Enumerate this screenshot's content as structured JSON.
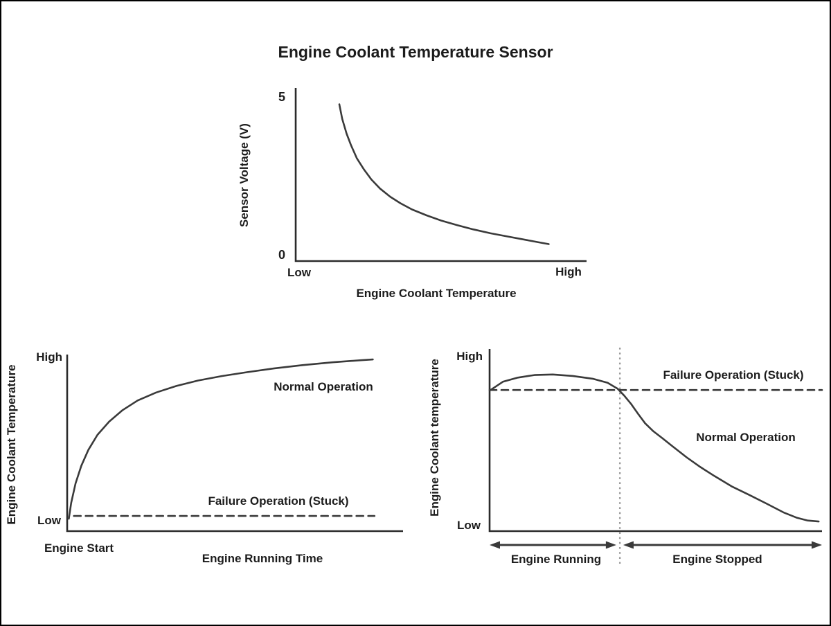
{
  "title": "Engine Coolant Temperature Sensor",
  "colors": {
    "line": "#3a3a3a",
    "axis": "#2b2b2b",
    "vline": "#9b9b9b",
    "text": "#1c1c1c"
  },
  "chart_data": [
    {
      "type": "line",
      "title": "Sensor voltage vs engine coolant temperature",
      "xlabel": "Engine Coolant Temperature",
      "ylabel": "Sensor Voltage (V)",
      "xticks": [
        "Low",
        "High"
      ],
      "yticks": [
        "5",
        "0"
      ],
      "ylim": [
        0,
        5.3
      ],
      "series": [
        {
          "name": "Sensor voltage",
          "style": "solid",
          "points": [
            [
              0.15,
              4.8
            ],
            [
              0.16,
              4.35
            ],
            [
              0.175,
              3.9
            ],
            [
              0.19,
              3.55
            ],
            [
              0.21,
              3.15
            ],
            [
              0.235,
              2.8
            ],
            [
              0.26,
              2.5
            ],
            [
              0.29,
              2.22
            ],
            [
              0.325,
              1.97
            ],
            [
              0.36,
              1.77
            ],
            [
              0.4,
              1.58
            ],
            [
              0.45,
              1.4
            ],
            [
              0.5,
              1.24
            ],
            [
              0.555,
              1.1
            ],
            [
              0.61,
              0.97
            ],
            [
              0.67,
              0.85
            ],
            [
              0.73,
              0.75
            ],
            [
              0.79,
              0.65
            ],
            [
              0.845,
              0.56
            ],
            [
              0.87,
              0.52
            ]
          ]
        }
      ]
    },
    {
      "type": "line",
      "title": "Warm-up behavior",
      "xlabel": "Engine Running Time",
      "ylabel": "Engine Coolant Temperature",
      "origin_label": "Engine Start",
      "yticks": [
        "High",
        "Low"
      ],
      "ylim": [
        0,
        1
      ],
      "series": [
        {
          "name": "Normal Operation",
          "style": "solid",
          "points": [
            [
              0.005,
              0.07
            ],
            [
              0.012,
              0.16
            ],
            [
              0.025,
              0.27
            ],
            [
              0.042,
              0.37
            ],
            [
              0.063,
              0.46
            ],
            [
              0.09,
              0.545
            ],
            [
              0.125,
              0.62
            ],
            [
              0.165,
              0.685
            ],
            [
              0.21,
              0.74
            ],
            [
              0.265,
              0.785
            ],
            [
              0.325,
              0.822
            ],
            [
              0.39,
              0.853
            ],
            [
              0.46,
              0.878
            ],
            [
              0.535,
              0.9
            ],
            [
              0.615,
              0.921
            ],
            [
              0.7,
              0.94
            ],
            [
              0.79,
              0.956
            ],
            [
              0.875,
              0.968
            ],
            [
              0.91,
              0.972
            ]
          ]
        },
        {
          "name": "Failure Operation (Stuck)",
          "style": "dashed",
          "points": [
            [
              0.02,
              0.086
            ],
            [
              0.915,
              0.086
            ]
          ]
        }
      ]
    },
    {
      "type": "line",
      "title": "Cool-down behavior",
      "xlabel": "",
      "ylabel": "Engine Coolant temperature",
      "yticks": [
        "High",
        "Low"
      ],
      "ylim": [
        0,
        1
      ],
      "vline": {
        "x": 0.392,
        "style": "dotted"
      },
      "series": [
        {
          "name": "Failure Operation (Stuck)",
          "style": "dashed",
          "points": [
            [
              0.0,
              0.775
            ],
            [
              1.0,
              0.775
            ]
          ]
        },
        {
          "name": "Normal Operation",
          "style": "solid",
          "points": [
            [
              0.002,
              0.774
            ],
            [
              0.04,
              0.82
            ],
            [
              0.085,
              0.843
            ],
            [
              0.135,
              0.857
            ],
            [
              0.19,
              0.86
            ],
            [
              0.25,
              0.852
            ],
            [
              0.31,
              0.837
            ],
            [
              0.355,
              0.815
            ],
            [
              0.385,
              0.782
            ],
            [
              0.405,
              0.744
            ],
            [
              0.425,
              0.7
            ],
            [
              0.447,
              0.643
            ],
            [
              0.468,
              0.592
            ],
            [
              0.493,
              0.548
            ],
            [
              0.52,
              0.51
            ],
            [
              0.55,
              0.466
            ],
            [
              0.593,
              0.405
            ],
            [
              0.634,
              0.352
            ],
            [
              0.676,
              0.303
            ],
            [
              0.728,
              0.246
            ],
            [
              0.78,
              0.2
            ],
            [
              0.832,
              0.152
            ],
            [
              0.884,
              0.103
            ],
            [
              0.925,
              0.073
            ],
            [
              0.957,
              0.058
            ],
            [
              0.99,
              0.053
            ]
          ]
        }
      ],
      "phases": [
        {
          "label": "Engine Running",
          "from": 0.0,
          "to": 0.381
        },
        {
          "label": "Engine Stopped",
          "from": 0.402,
          "to": 1.0
        }
      ]
    }
  ]
}
